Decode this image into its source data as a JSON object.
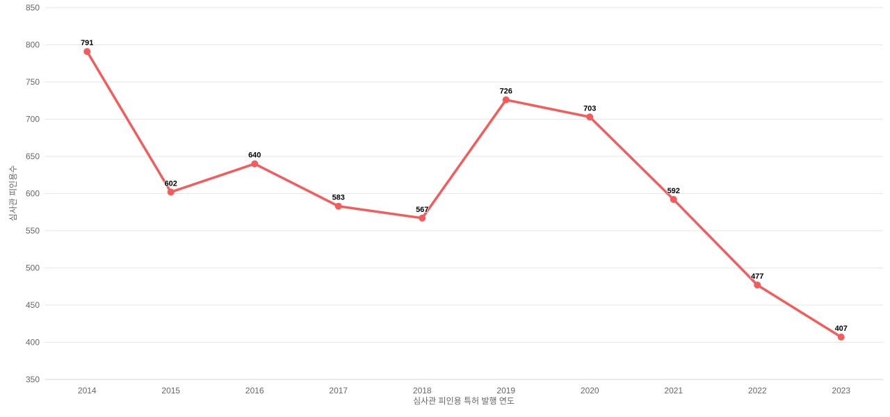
{
  "chart_data": {
    "type": "line",
    "categories": [
      "2014",
      "2015",
      "2016",
      "2017",
      "2018",
      "2019",
      "2020",
      "2021",
      "2022",
      "2023"
    ],
    "values": [
      791,
      602,
      640,
      583,
      567,
      726,
      703,
      592,
      477,
      407
    ],
    "title": "",
    "xlabel": "심사관 피인용 특허 발행 연도",
    "ylabel": "심사관 피인용수",
    "ylim": [
      350,
      850
    ],
    "ytick_step": 50,
    "yticks": [
      350,
      400,
      450,
      500,
      550,
      600,
      650,
      700,
      750,
      800,
      850
    ],
    "grid": true,
    "legend_position": "none",
    "data_labels_visible": true,
    "colors": {
      "series": "#f45b5b",
      "gridline": "#e6e6e6",
      "axis_line": "#ccd6eb",
      "tick_label": "#666666",
      "axis_title": "#666666",
      "data_label": "#000000",
      "background": "#ffffff"
    }
  }
}
